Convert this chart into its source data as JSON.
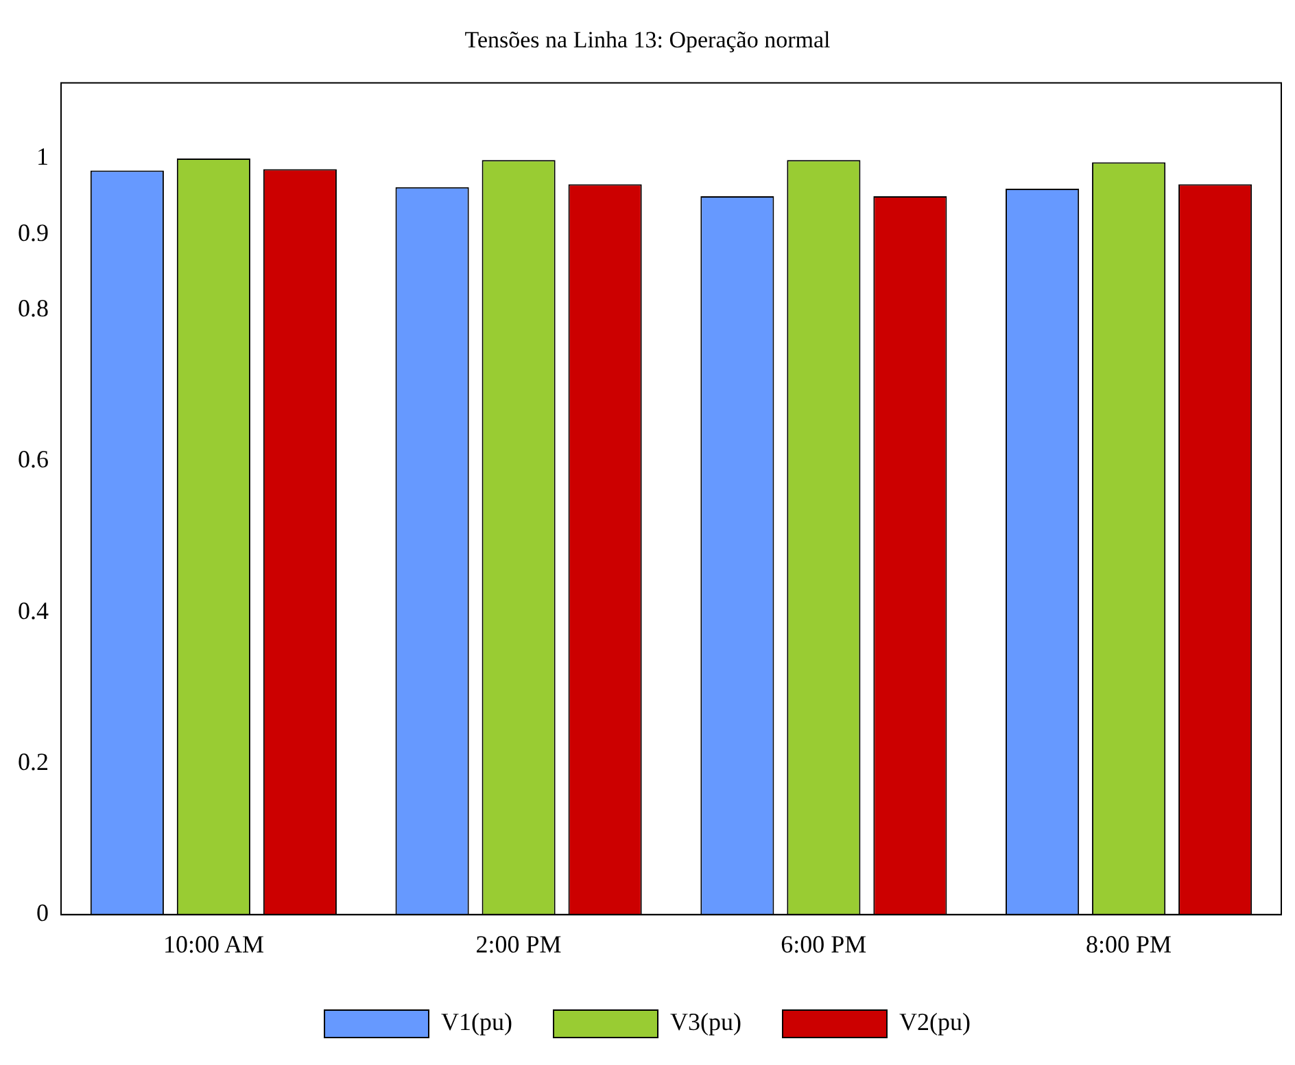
{
  "chart_data": {
    "type": "bar",
    "title": "Tensões na Linha 13: Operação normal",
    "categories": [
      "10:00 AM",
      "2:00 PM",
      "6:00 PM",
      "8:00 PM"
    ],
    "series": [
      {
        "name": "V1(pu)",
        "color": "#6699ff",
        "values": [
          0.984,
          0.962,
          0.95,
          0.96
        ]
      },
      {
        "name": "V3(pu)",
        "color": "#99cc33",
        "values": [
          1.0,
          0.998,
          0.998,
          0.995
        ]
      },
      {
        "name": "V2(pu)",
        "color": "#cc0000",
        "values": [
          0.986,
          0.966,
          0.95,
          0.966
        ]
      }
    ],
    "ylim": [
      0,
      1.1
    ],
    "yticks": [
      0,
      0.2,
      0.4,
      0.6,
      0.8,
      0.9,
      1
    ],
    "grid": false,
    "legend": "bottom"
  }
}
